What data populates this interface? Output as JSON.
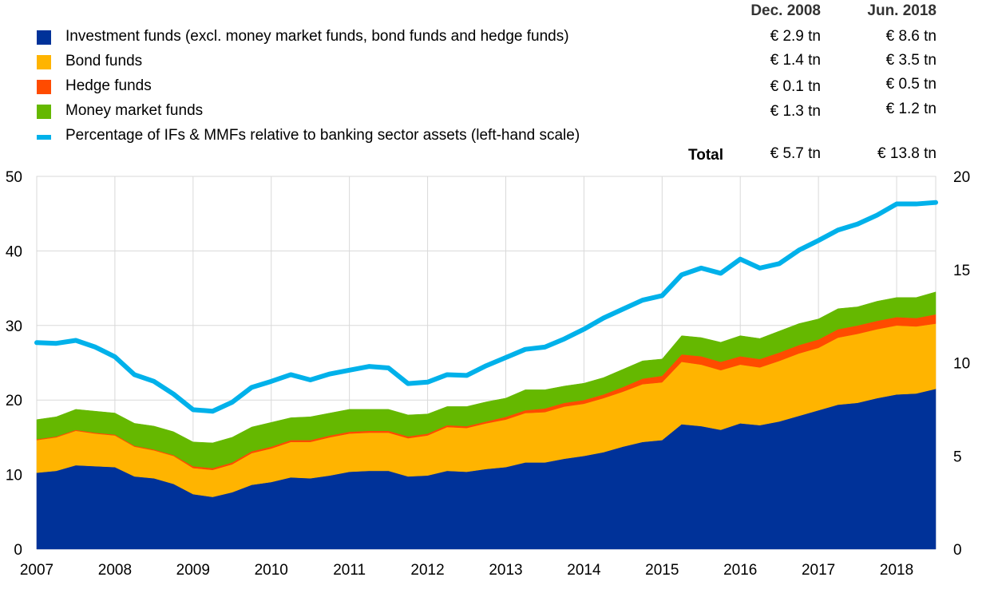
{
  "legend": {
    "headers": {
      "dec2008": "Dec. 2008",
      "jun2018": "Jun. 2018"
    },
    "items": [
      {
        "label": "Investment funds (excl. money market funds, bond funds and hedge funds)",
        "color": "#003299",
        "dec2008": "€ 2.9 tn",
        "jun2018": "€ 8.6 tn"
      },
      {
        "label": "Bond funds",
        "color": "#FFB400",
        "dec2008": "€ 1.4 tn",
        "jun2018": "€ 3.5 tn"
      },
      {
        "label": "Hedge funds",
        "color": "#FF4B00",
        "dec2008": "€ 0.1 tn",
        "jun2018": "€ 0.5 tn"
      },
      {
        "label": "Money market funds",
        "color": "#65B800",
        "dec2008": "€ 1.3 tn",
        "jun2018": "€ 1.2 tn"
      },
      {
        "label": "Percentage of IFs & MMFs relative to banking sector assets (left-hand scale)",
        "color": "#00B1EA"
      }
    ],
    "total": {
      "label": "Total",
      "dec2008": "€ 5.7 tn",
      "jun2018": "€ 13.8 tn"
    }
  },
  "chart_data": {
    "type": "area",
    "x_start": 2007.0,
    "x_step": 0.25,
    "xlim": [
      2007.0,
      2018.5
    ],
    "x_ticks": [
      "2007",
      "2008",
      "2009",
      "2010",
      "2011",
      "2012",
      "2013",
      "2014",
      "2015",
      "2016",
      "2017",
      "2018"
    ],
    "x_tick_values": [
      2007,
      2008,
      2009,
      2010,
      2011,
      2012,
      2013,
      2014,
      2015,
      2016,
      2017,
      2018
    ],
    "ylim_left": [
      0,
      50
    ],
    "y_ticks_left": [
      "0",
      "10",
      "20",
      "30",
      "40",
      "50"
    ],
    "y_tick_values_left": [
      0,
      10,
      20,
      30,
      40,
      50
    ],
    "ylim_right": [
      0,
      20
    ],
    "y_ticks_right": [
      "0",
      "5",
      "10",
      "15",
      "20"
    ],
    "y_tick_values_right": [
      0,
      5,
      10,
      15,
      20
    ],
    "grid": true,
    "stacked_axis": "right",
    "series": [
      {
        "name": "Investment funds (excl. money market funds, bond funds and hedge funds)",
        "color": "#003299",
        "axis": "right",
        "values": [
          4.1,
          4.2,
          4.5,
          4.45,
          4.4,
          3.9,
          3.8,
          3.5,
          2.95,
          2.8,
          3.05,
          3.45,
          3.6,
          3.85,
          3.8,
          3.95,
          4.15,
          4.2,
          4.2,
          3.9,
          3.95,
          4.2,
          4.15,
          4.3,
          4.4,
          4.65,
          4.65,
          4.85,
          5.0,
          5.2,
          5.5,
          5.75,
          5.85,
          6.7,
          6.6,
          6.4,
          6.75,
          6.65,
          6.85,
          7.15,
          7.45,
          7.75,
          7.85,
          8.1,
          8.3,
          8.35,
          8.6
        ]
      },
      {
        "name": "Bond funds",
        "color": "#FFB400",
        "axis": "right",
        "values": [
          1.75,
          1.8,
          1.85,
          1.75,
          1.7,
          1.6,
          1.5,
          1.5,
          1.4,
          1.45,
          1.5,
          1.7,
          1.8,
          1.9,
          1.95,
          2.05,
          2.05,
          2.05,
          2.05,
          2.05,
          2.15,
          2.35,
          2.35,
          2.45,
          2.55,
          2.65,
          2.7,
          2.8,
          2.8,
          2.9,
          2.95,
          3.1,
          3.1,
          3.35,
          3.3,
          3.2,
          3.15,
          3.1,
          3.25,
          3.35,
          3.35,
          3.6,
          3.7,
          3.7,
          3.7,
          3.6,
          3.5
        ]
      },
      {
        "name": "Hedge funds",
        "color": "#FF4B00",
        "axis": "right",
        "values": [
          0.05,
          0.05,
          0.05,
          0.05,
          0.05,
          0.05,
          0.05,
          0.05,
          0.1,
          0.1,
          0.1,
          0.1,
          0.1,
          0.1,
          0.1,
          0.1,
          0.1,
          0.1,
          0.1,
          0.1,
          0.1,
          0.1,
          0.1,
          0.1,
          0.15,
          0.15,
          0.2,
          0.2,
          0.2,
          0.2,
          0.25,
          0.3,
          0.35,
          0.4,
          0.45,
          0.45,
          0.45,
          0.45,
          0.45,
          0.45,
          0.45,
          0.45,
          0.45,
          0.45,
          0.45,
          0.45,
          0.5
        ]
      },
      {
        "name": "Money market funds",
        "color": "#65B800",
        "axis": "right",
        "values": [
          1.05,
          1.05,
          1.1,
          1.15,
          1.15,
          1.2,
          1.25,
          1.25,
          1.3,
          1.35,
          1.35,
          1.3,
          1.3,
          1.2,
          1.25,
          1.2,
          1.2,
          1.15,
          1.15,
          1.15,
          1.05,
          1.0,
          1.05,
          1.05,
          1.0,
          1.1,
          1.0,
          0.9,
          0.9,
          0.9,
          0.95,
          0.95,
          0.9,
          1.0,
          1.0,
          1.05,
          1.1,
          1.1,
          1.15,
          1.15,
          1.1,
          1.1,
          1.0,
          1.05,
          1.05,
          1.1,
          1.2
        ]
      },
      {
        "name": "Percentage of IFs & MMFs relative to banking sector assets (left-hand scale)",
        "color": "#00B1EA",
        "axis": "left",
        "type": "line",
        "values": [
          27.7,
          27.6,
          28.0,
          27.1,
          25.8,
          23.4,
          22.5,
          20.8,
          18.7,
          18.5,
          19.7,
          21.7,
          22.5,
          23.4,
          22.7,
          23.5,
          24.0,
          24.5,
          24.3,
          22.2,
          22.4,
          23.4,
          23.3,
          24.6,
          25.7,
          26.8,
          27.1,
          28.2,
          29.5,
          31.0,
          32.2,
          33.4,
          34.0,
          36.8,
          37.7,
          37.0,
          38.9,
          37.7,
          38.3,
          40.1,
          41.4,
          42.8,
          43.6,
          44.8,
          46.3,
          46.3,
          46.5
        ]
      }
    ]
  }
}
